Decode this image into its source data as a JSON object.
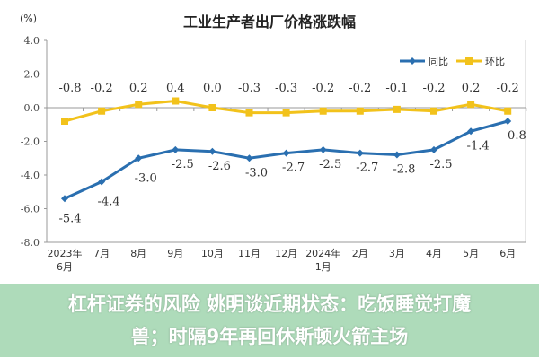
{
  "chart_data": {
    "type": "line",
    "title": "工业生产者出厂价格涨跌幅",
    "ylabel": "(%)",
    "categories": [
      [
        "2023年",
        "6月"
      ],
      [
        "7月"
      ],
      [
        "8月"
      ],
      [
        "9月"
      ],
      [
        "10月"
      ],
      [
        "11月"
      ],
      [
        "12月"
      ],
      [
        "2024年",
        "1月"
      ],
      [
        "2月"
      ],
      [
        "3月"
      ],
      [
        "4月"
      ],
      [
        "5月"
      ],
      [
        "6月"
      ]
    ],
    "ylim": [
      -8.0,
      4.0
    ],
    "yticks": [
      "4.0",
      "2.0",
      "0.0",
      "-2.0",
      "-4.0",
      "-6.0",
      "-8.0"
    ],
    "ytick_values": [
      4,
      2,
      0,
      -2,
      -4,
      -6,
      -8
    ],
    "legend_position": "top-right",
    "grid": false,
    "series": [
      {
        "name": "同比",
        "color": "#2a6fb0",
        "values": [
          -5.4,
          -4.4,
          -3.0,
          -2.5,
          -2.6,
          -3.0,
          -2.7,
          -2.5,
          -2.7,
          -2.8,
          -2.5,
          -1.4,
          -0.8
        ],
        "labels": [
          "-5.4",
          "-4.4",
          "-3.0",
          "-2.5",
          "-2.6",
          "-3.0",
          "-2.7",
          "-2.5",
          "-2.7",
          "-2.8",
          "-2.5",
          "-1.4",
          "-0.8"
        ]
      },
      {
        "name": "环比",
        "color": "#f2c21b",
        "values": [
          -0.8,
          -0.2,
          0.2,
          0.4,
          0.0,
          -0.3,
          -0.3,
          -0.2,
          -0.2,
          -0.1,
          -0.2,
          0.2,
          -0.2
        ],
        "labels": [
          "-0.8",
          "-0.2",
          "0.2",
          "0.4",
          "0.0",
          "-0.3",
          "-0.3",
          "-0.2",
          "-0.2",
          "-0.1",
          "-0.2",
          "0.2",
          "-0.2"
        ]
      }
    ]
  },
  "overlay": {
    "line1": "杠杆证券的风险 姚明谈近期状态：吃饭睡觉打魔",
    "line2": "兽；时隔9年再回休斯顿火箭主场"
  }
}
